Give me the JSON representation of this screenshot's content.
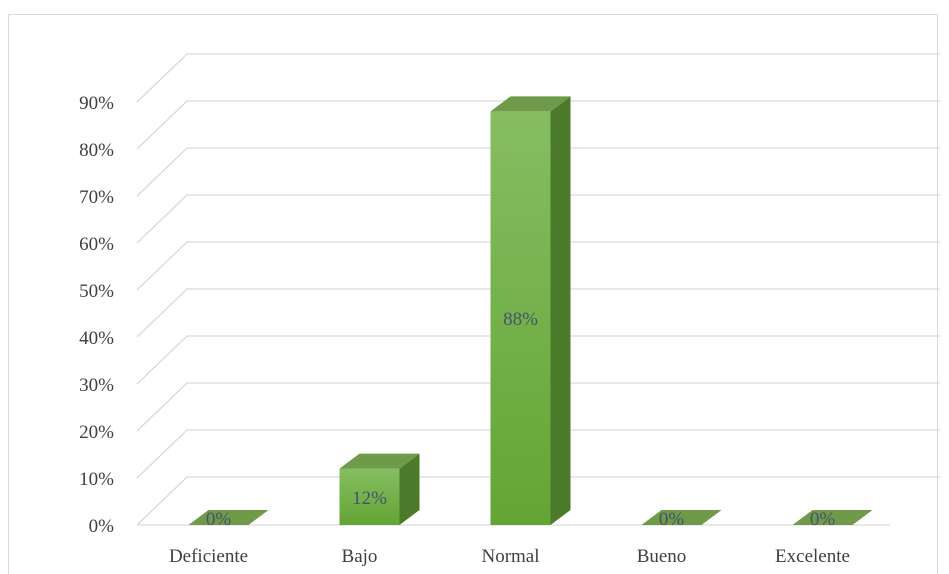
{
  "chart_data": {
    "type": "bar",
    "categories": [
      "Deficiente",
      "Bajo",
      "Normal",
      "Bueno",
      "Excelente"
    ],
    "values": [
      0,
      12,
      88,
      0,
      0
    ],
    "data_labels": [
      "0%",
      "12%",
      "88%",
      "0%",
      "0%"
    ],
    "ylim": [
      0,
      90
    ],
    "yticks": [
      0,
      10,
      20,
      30,
      40,
      50,
      60,
      70,
      80,
      90
    ],
    "ytick_labels": [
      "0%",
      "10%",
      "20%",
      "30%",
      "40%",
      "50%",
      "60%",
      "70%",
      "80%",
      "90%"
    ],
    "grid": true,
    "style": "3d-column",
    "colors": {
      "bar_front_top": "#86bd62",
      "bar_front_bottom": "#63a534",
      "bar_side": "#4a7a2a",
      "bar_top": "#6f9a4a",
      "gridline": "#d9d9d9",
      "text": "#404040",
      "data_label": "#44546a"
    }
  }
}
